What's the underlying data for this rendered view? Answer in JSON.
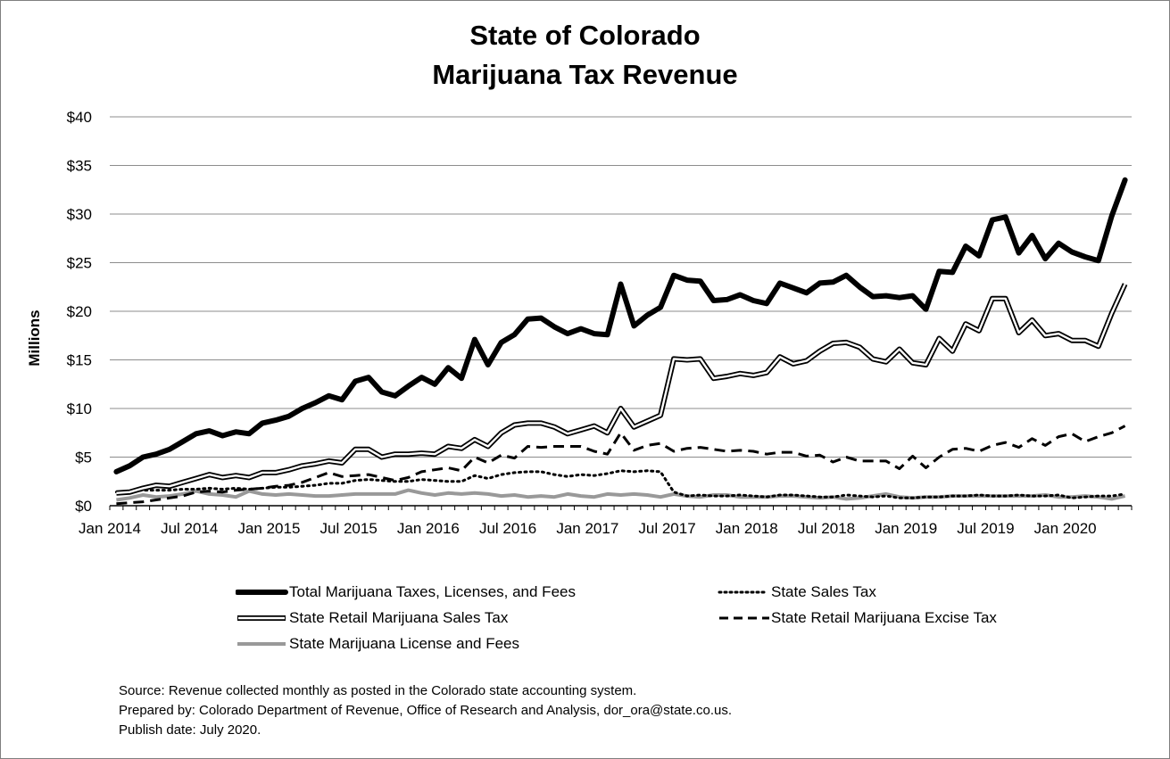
{
  "chart_data": {
    "type": "line",
    "title": [
      "State of Colorado",
      "Marijuana Tax Revenue"
    ],
    "ylabel": "Millions",
    "y_ticks": [
      "$0",
      "$5",
      "$10",
      "$15",
      "$20",
      "$25",
      "$30",
      "$35",
      "$40"
    ],
    "ylim": [
      0,
      40
    ],
    "x_ticks": [
      "Jan 2014",
      "Jul 2014",
      "Jan 2015",
      "Jul 2015",
      "Jan 2016",
      "Jul 2016",
      "Jan 2017",
      "Jul 2017",
      "Jan 2018",
      "Jul 2018",
      "Jan 2019",
      "Jul 2019",
      "Jan 2020"
    ],
    "x_start": "Jan 2014",
    "x_end": "Jun 2020",
    "grid": "horizontal",
    "legend_position": "bottom",
    "series": [
      {
        "name": "Total Marijuana Taxes, Licenses, and Fees",
        "style": "thick-solid",
        "color": "#000000",
        "values": [
          3.5,
          4.1,
          5.0,
          5.3,
          5.8,
          6.6,
          7.4,
          7.7,
          7.2,
          7.6,
          7.4,
          8.5,
          8.8,
          9.2,
          10.0,
          10.6,
          11.3,
          10.9,
          12.8,
          13.2,
          11.7,
          11.3,
          12.3,
          13.2,
          12.5,
          14.2,
          13.1,
          17.1,
          14.5,
          16.8,
          17.6,
          19.2,
          19.3,
          18.4,
          17.7,
          18.2,
          17.7,
          17.6,
          22.8,
          18.5,
          19.6,
          20.4,
          23.7,
          23.2,
          23.1,
          21.1,
          21.2,
          21.7,
          21.1,
          20.8,
          22.9,
          22.4,
          21.9,
          22.9,
          23.0,
          23.7,
          22.5,
          21.5,
          21.6,
          21.4,
          21.6,
          20.2,
          24.1,
          24.0,
          26.7,
          25.7,
          29.4,
          29.7,
          26.0,
          27.8,
          25.4,
          27.0,
          26.1,
          25.6,
          25.2,
          29.8,
          33.5
        ]
      },
      {
        "name": "State Sales Tax",
        "style": "dotted",
        "color": "#000000",
        "values": [
          1.4,
          1.5,
          1.6,
          1.6,
          1.6,
          1.7,
          1.7,
          1.8,
          1.7,
          1.8,
          1.7,
          1.8,
          1.9,
          1.9,
          2.0,
          2.1,
          2.3,
          2.3,
          2.6,
          2.7,
          2.6,
          2.5,
          2.5,
          2.7,
          2.6,
          2.5,
          2.5,
          3.1,
          2.8,
          3.2,
          3.4,
          3.5,
          3.5,
          3.2,
          3.0,
          3.2,
          3.1,
          3.3,
          3.6,
          3.5,
          3.6,
          3.5,
          1.4,
          1.0,
          1.1,
          1.0,
          1.0,
          1.1,
          1.0,
          0.9,
          1.1,
          1.1,
          1.0,
          0.9,
          0.9,
          1.1,
          1.0,
          0.9,
          1.0,
          0.8,
          0.8,
          0.9,
          0.9,
          1.0,
          1.0,
          1.1,
          1.0,
          1.0,
          1.1,
          1.0,
          1.0,
          1.1,
          0.8,
          0.9,
          1.0,
          1.0,
          1.2
        ]
      },
      {
        "name": "State Retail Marijuana Sales Tax",
        "style": "double",
        "color": "#000000",
        "values": [
          1.3,
          1.4,
          1.8,
          2.1,
          2.0,
          2.4,
          2.8,
          3.2,
          2.9,
          3.1,
          2.9,
          3.4,
          3.4,
          3.7,
          4.1,
          4.3,
          4.6,
          4.4,
          5.8,
          5.8,
          5.0,
          5.3,
          5.3,
          5.4,
          5.3,
          6.1,
          5.9,
          6.8,
          6.1,
          7.5,
          8.3,
          8.5,
          8.5,
          8.1,
          7.4,
          7.8,
          8.2,
          7.5,
          10.0,
          8.1,
          8.7,
          9.3,
          15.1,
          15.0,
          15.1,
          13.1,
          13.3,
          13.6,
          13.4,
          13.7,
          15.3,
          14.6,
          14.9,
          15.9,
          16.7,
          16.8,
          16.3,
          15.1,
          14.8,
          16.1,
          14.7,
          14.5,
          17.2,
          15.9,
          18.7,
          18.0,
          21.3,
          21.3,
          17.8,
          19.1,
          17.5,
          17.7,
          17.0,
          17.0,
          16.4,
          19.8,
          22.8
        ]
      },
      {
        "name": "State Retail Marijuana Excise Tax",
        "style": "dashed",
        "color": "#000000",
        "values": [
          0.2,
          0.3,
          0.4,
          0.6,
          0.8,
          1.0,
          1.4,
          1.5,
          1.4,
          1.6,
          1.7,
          1.8,
          2.0,
          2.1,
          2.4,
          2.9,
          3.4,
          3.0,
          3.1,
          3.2,
          2.9,
          2.6,
          2.9,
          3.5,
          3.7,
          3.9,
          3.6,
          5.0,
          4.4,
          5.2,
          4.9,
          6.1,
          6.0,
          6.1,
          6.1,
          6.1,
          5.6,
          5.3,
          7.5,
          5.7,
          6.2,
          6.4,
          5.6,
          5.9,
          6.0,
          5.8,
          5.6,
          5.7,
          5.6,
          5.3,
          5.5,
          5.5,
          5.1,
          5.2,
          4.5,
          5.0,
          4.6,
          4.6,
          4.6,
          3.8,
          5.1,
          3.9,
          5.0,
          5.8,
          5.9,
          5.6,
          6.2,
          6.5,
          6.0,
          6.9,
          6.2,
          7.1,
          7.4,
          6.6,
          7.1,
          7.5,
          8.2
        ]
      },
      {
        "name": "State Marijuana License and Fees",
        "style": "gray-solid",
        "color": "#999999",
        "values": [
          0.6,
          0.8,
          1.1,
          0.9,
          1.0,
          1.2,
          1.5,
          1.2,
          1.1,
          0.9,
          1.5,
          1.2,
          1.1,
          1.2,
          1.1,
          1.0,
          1.0,
          1.1,
          1.2,
          1.2,
          1.2,
          1.2,
          1.6,
          1.3,
          1.1,
          1.3,
          1.2,
          1.3,
          1.2,
          1.0,
          1.1,
          0.9,
          1.0,
          0.9,
          1.2,
          1.0,
          0.9,
          1.2,
          1.1,
          1.2,
          1.1,
          0.9,
          1.2,
          1.0,
          0.9,
          1.1,
          1.1,
          0.9,
          0.9,
          0.9,
          1.0,
          1.0,
          0.9,
          0.8,
          0.9,
          0.7,
          0.8,
          1.0,
          1.2,
          0.9,
          0.8,
          0.9,
          0.9,
          1.0,
          1.0,
          1.0,
          1.0,
          1.0,
          1.0,
          1.0,
          1.1,
          0.9,
          0.9,
          1.0,
          0.9,
          0.7,
          1.0
        ]
      }
    ]
  },
  "source_notes": [
    "Source: Revenue collected monthly as posted in the Colorado state accounting system.",
    "Prepared by: Colorado Department of Revenue, Office of Research and Analysis, dor_ora@state.co.us.",
    "Publish date: July 2020."
  ]
}
